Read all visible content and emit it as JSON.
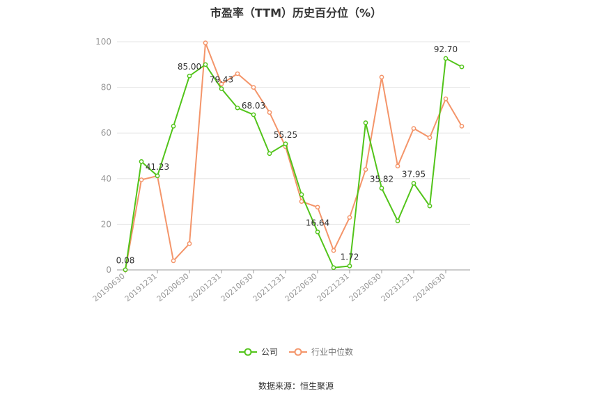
{
  "chart_data": {
    "type": "line",
    "title": "市盈率（TTM）历史百分位（%）",
    "source": "数据来源：恒生聚源",
    "ylim": [
      0,
      100
    ],
    "y_ticks": [
      0,
      20,
      40,
      60,
      80,
      100
    ],
    "x": [
      "20190630",
      "20190930",
      "20191231",
      "20200331",
      "20200630",
      "20200930",
      "20201231",
      "20210331",
      "20210630",
      "20210930",
      "20211231",
      "20220331",
      "20220630",
      "20220930",
      "20221231",
      "20230331",
      "20230630",
      "20230930",
      "20231231",
      "20240331",
      "20240630",
      "20240930"
    ],
    "x_tick_labels": [
      "20190630",
      "20191231",
      "20200630",
      "20201231",
      "20210630",
      "20211231",
      "20220630",
      "20221231",
      "20230630",
      "20231231",
      "20240630"
    ],
    "grid": true,
    "legend_position": "bottom",
    "series": [
      {
        "name": "公司",
        "color": "#52c41a",
        "values": [
          0.08,
          47.5,
          41.23,
          63,
          85.0,
          90,
          79.43,
          71,
          68.03,
          51,
          55.25,
          33,
          16.64,
          1,
          1.72,
          64.5,
          35.82,
          21.5,
          37.95,
          28,
          92.7,
          89
        ],
        "data_labels": {
          "0": "0.08",
          "2": "41.23",
          "4": "85.00",
          "6": "79.43",
          "8": "68.03",
          "10": "55.25",
          "12": "16.64",
          "14": "1.72",
          "16": "35.82",
          "18": "37.95",
          "20": "92.70"
        }
      },
      {
        "name": "行业中位数",
        "color": "#f4956a",
        "values": [
          0,
          39.5,
          41.2,
          4,
          11.5,
          99.5,
          81.5,
          86,
          80,
          69,
          54,
          30,
          27.5,
          8.5,
          23,
          44,
          84.5,
          45.5,
          62,
          58,
          75,
          63
        ]
      }
    ]
  }
}
